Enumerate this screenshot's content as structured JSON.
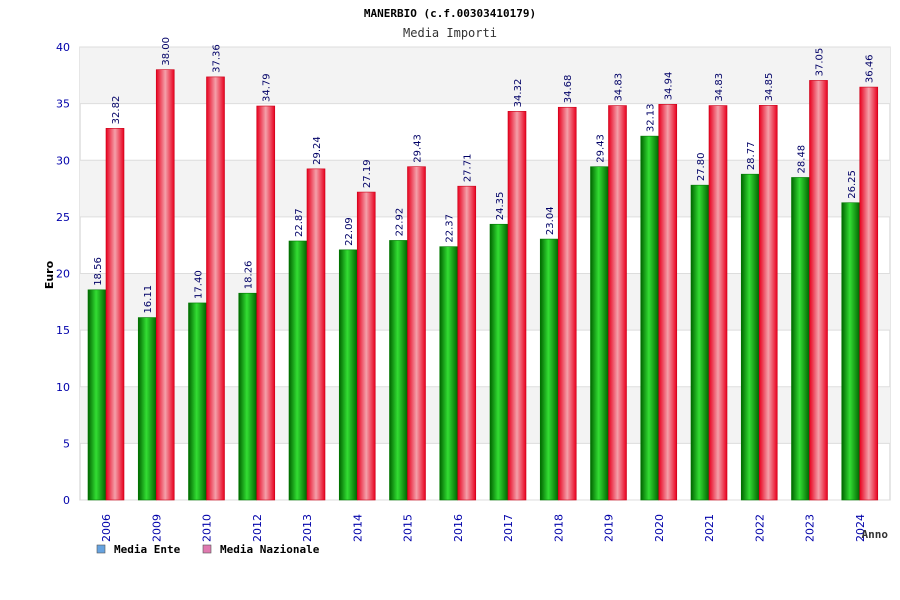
{
  "chart_data": {
    "type": "bar",
    "title": "MANERBIO (c.f.00303410179)",
    "subtitle": "Media Importi",
    "ylabel": "Euro",
    "xlabel": "Anno",
    "ylim": [
      0,
      40
    ],
    "yticks": [
      0,
      5,
      10,
      15,
      20,
      25,
      30,
      35,
      40
    ],
    "categories": [
      "2006",
      "2009",
      "2010",
      "2012",
      "2013",
      "2014",
      "2015",
      "2016",
      "2017",
      "2018",
      "2019",
      "2020",
      "2021",
      "2022",
      "2023",
      "2024"
    ],
    "series": [
      {
        "name": "Media Ente",
        "values": [
          18.56,
          16.11,
          17.4,
          18.26,
          22.87,
          22.09,
          22.92,
          22.37,
          24.35,
          23.04,
          29.43,
          32.13,
          27.8,
          28.77,
          28.48,
          26.25
        ],
        "labels": [
          "18.56",
          "16.11",
          "17.40",
          "18.26",
          "22.87",
          "22.09",
          "22.92",
          "22.37",
          "24.35",
          "23.04",
          "29.43",
          "32.13",
          "27.80",
          "28.77",
          "28.48",
          "26.25"
        ],
        "bar_color": "#00b000",
        "legend_color": "#66a3e0"
      },
      {
        "name": "Media Nazionale",
        "values": [
          32.82,
          38.0,
          37.36,
          34.79,
          29.24,
          27.19,
          29.43,
          27.71,
          34.32,
          34.68,
          34.83,
          34.94,
          34.83,
          34.85,
          37.05,
          36.46
        ],
        "labels": [
          "32.82",
          "38.00",
          "37.36",
          "34.79",
          "29.24",
          "27.19",
          "29.43",
          "27.71",
          "34.32",
          "34.68",
          "34.83",
          "34.94",
          "34.83",
          "34.85",
          "37.05",
          "36.46"
        ],
        "bar_color": "#e8102a",
        "legend_color": "#e07ab0"
      }
    ],
    "grid": true,
    "legend_position": "bottom-left"
  }
}
